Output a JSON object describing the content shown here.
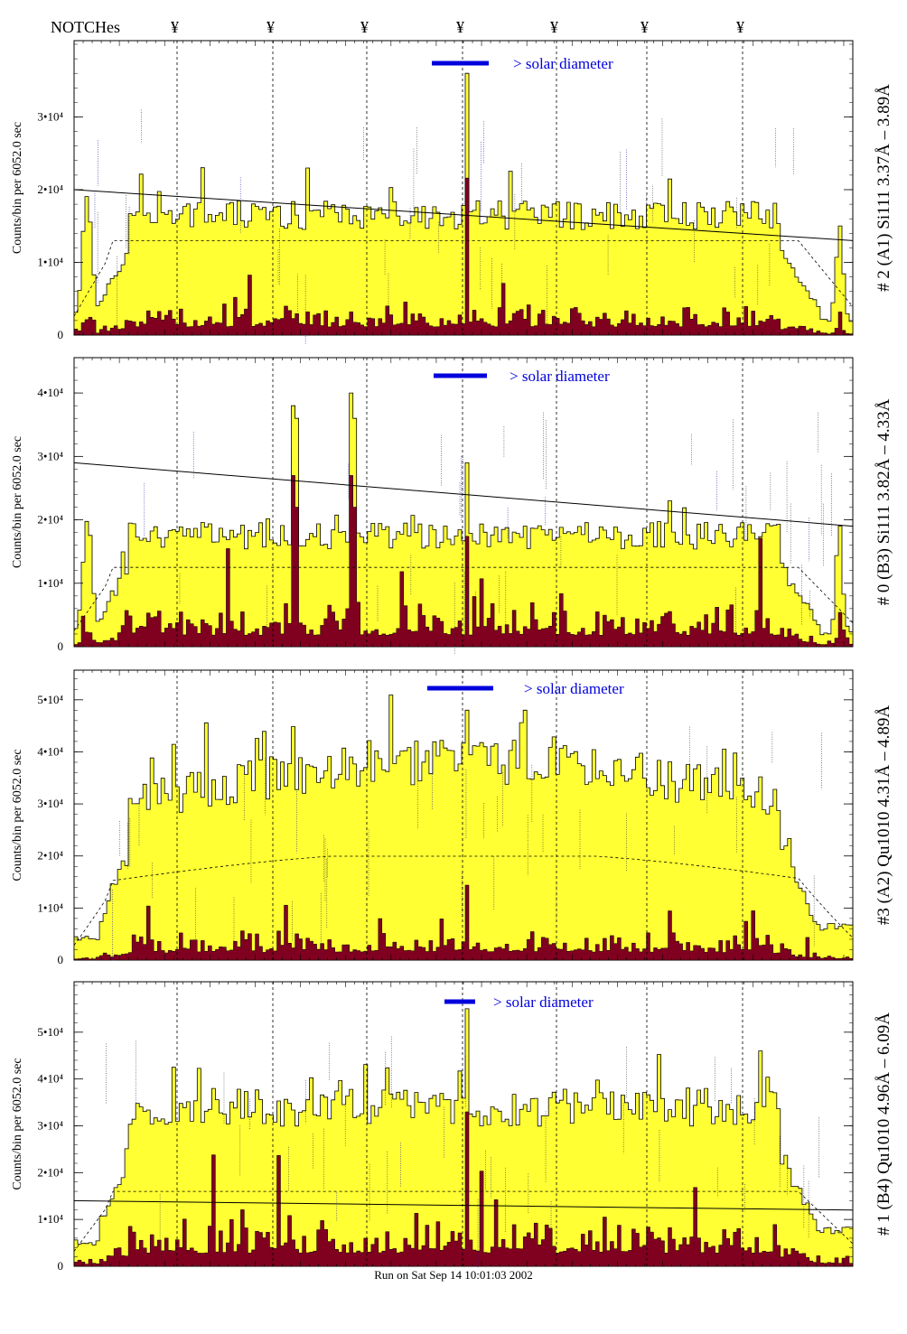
{
  "header": {
    "notches_label": "NOTCHes",
    "notch_symbol": "¥"
  },
  "footer": {
    "run_text": "Run on Sat Sep 14 10:01:03 2002"
  },
  "colors": {
    "counts_fill": "#ffff33",
    "lines_fill": "#800020",
    "legend_bar": "#0000dd",
    "legend_text": "#0000dd"
  },
  "chart_data": [
    {
      "type": "histogram",
      "panel_label": "# 2 (A1) Si111  3.37Å – 3.89Å",
      "ylabel": "Counts/bin per   6052.0 sec",
      "ylim": [
        0,
        40000
      ],
      "yticks": [
        {
          "value": 0,
          "label": "0"
        },
        {
          "value": 10000,
          "label": "1•10⁴"
        },
        {
          "value": 20000,
          "label": "2•10⁴"
        },
        {
          "value": 30000,
          "label": "3•10⁴"
        }
      ],
      "legend_text": "> solar diameter",
      "spike_value": 36000,
      "trend_line": [
        20000,
        13000
      ],
      "upper_level": 16500,
      "lower_level": 2800,
      "dashed_level": 13000
    },
    {
      "type": "histogram",
      "panel_label": "# 0 (B3) Si111  3.82Å – 4.33Å",
      "ylabel": "Counts/bin per   6052.0 sec",
      "ylim": [
        0,
        45000
      ],
      "yticks": [
        {
          "value": 0,
          "label": "0"
        },
        {
          "value": 10000,
          "label": "1•10⁴"
        },
        {
          "value": 20000,
          "label": "2•10⁴"
        },
        {
          "value": 30000,
          "label": "3•10⁴"
        },
        {
          "value": 40000,
          "label": "4•10⁴"
        }
      ],
      "legend_text": "> solar diameter",
      "spike_value": 29000,
      "trend_line": [
        29000,
        19000
      ],
      "upper_level": 17500,
      "lower_level": 4500,
      "dashed_level": 12500
    },
    {
      "type": "histogram",
      "panel_label": "#3 (A2) Qu1010  4.31Å – 4.89Å",
      "ylabel": "Counts/bin per   6052.0 sec",
      "ylim": [
        0,
        55000
      ],
      "yticks": [
        {
          "value": 0,
          "label": "0"
        },
        {
          "value": 10000,
          "label": "1•10⁴"
        },
        {
          "value": 20000,
          "label": "2•10⁴"
        },
        {
          "value": 30000,
          "label": "3•10⁴"
        },
        {
          "value": 40000,
          "label": "4•10⁴"
        },
        {
          "value": 50000,
          "label": "5•10⁴"
        }
      ],
      "legend_text": "> solar diameter",
      "spike_value": 48000,
      "trend_line": null,
      "upper_level": 33000,
      "lower_level": 3500,
      "dashed_level": 19000
    },
    {
      "type": "histogram",
      "panel_label": "# 1 (B4) Qu1010 4.96Å – 6.09Å",
      "ylabel": "Counts/bin per   6052.0 sec",
      "ylim": [
        0,
        60000
      ],
      "yticks": [
        {
          "value": 0,
          "label": "0"
        },
        {
          "value": 10000,
          "label": "1•10⁴"
        },
        {
          "value": 20000,
          "label": "2•10⁴"
        },
        {
          "value": 30000,
          "label": "3•10⁴"
        },
        {
          "value": 40000,
          "label": "4•10⁴"
        },
        {
          "value": 50000,
          "label": "5•10⁴"
        }
      ],
      "legend_text": "> solar diameter",
      "spike_value": 55000,
      "trend_line": [
        14000,
        12000
      ],
      "upper_level": 34000,
      "lower_level": 7000,
      "dashed_level": 16000
    }
  ]
}
